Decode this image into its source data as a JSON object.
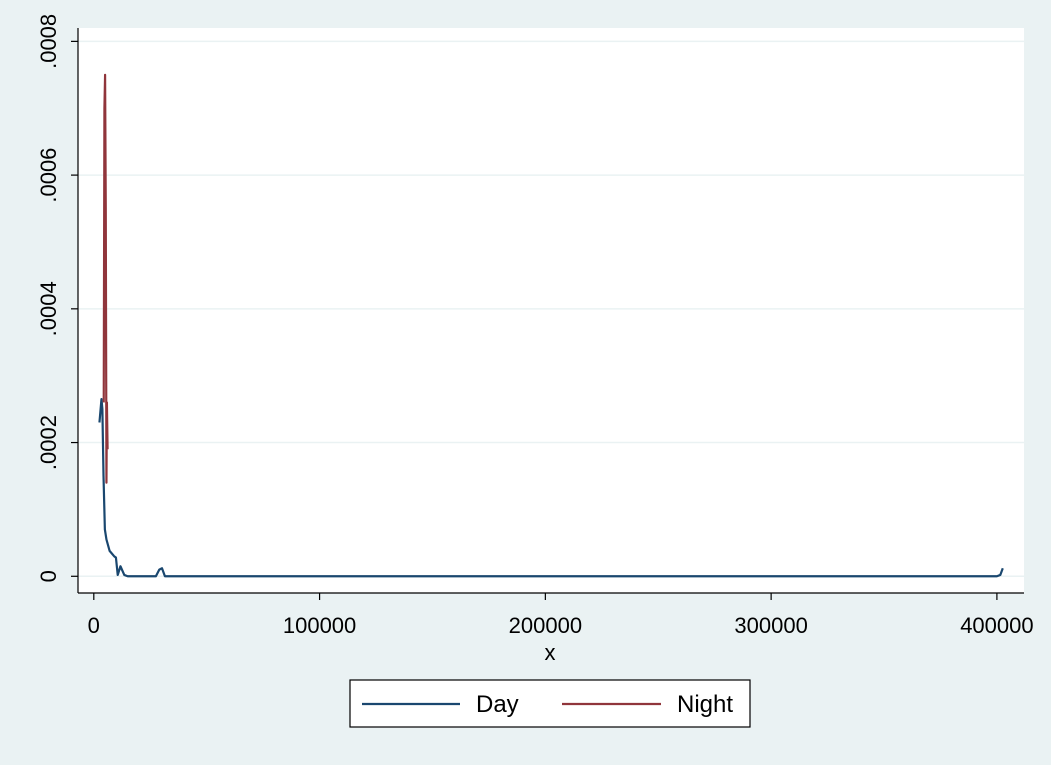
{
  "chart_data": {
    "type": "line",
    "xlabel": "x",
    "ylabel": "",
    "xlim": [
      -7000,
      412000
    ],
    "ylim": [
      -2.5e-05,
      0.00082
    ],
    "x_ticks": [
      0,
      100000,
      200000,
      300000,
      400000
    ],
    "x_tick_labels": [
      "0",
      "100000",
      "200000",
      "300000",
      "400000"
    ],
    "y_ticks": [
      0,
      0.0002,
      0.0004,
      0.0006,
      0.0008
    ],
    "y_tick_labels": [
      "0",
      ".0002",
      ".0004",
      ".0006",
      ".0008"
    ],
    "grid": true,
    "legend_position": "bottom",
    "series": [
      {
        "name": "Day",
        "color": "#1a476f",
        "points": [
          [
            2500,
            0.00023
          ],
          [
            3400,
            0.000265
          ],
          [
            3800,
            0.00025
          ],
          [
            4300,
            0.00015
          ],
          [
            4900,
            7e-05
          ],
          [
            5600,
            5.5e-05
          ],
          [
            7000,
            3.8e-05
          ],
          [
            9000,
            3e-05
          ],
          [
            9800,
            2.8e-05
          ],
          [
            10600,
            2e-06
          ],
          [
            11800,
            1.5e-05
          ],
          [
            13500,
            2e-06
          ],
          [
            15000,
            0
          ],
          [
            27500,
            0
          ],
          [
            29000,
            1e-05
          ],
          [
            30200,
            1.2e-05
          ],
          [
            31500,
            0
          ],
          [
            400000,
            0
          ],
          [
            401500,
            2e-06
          ],
          [
            402600,
            1.2e-05
          ]
        ]
      },
      {
        "name": "Night",
        "color": "#90353b",
        "points": [
          [
            4400,
            0.00026
          ],
          [
            4700,
            0.0007
          ],
          [
            5000,
            0.00075
          ],
          [
            5300,
            0.00055
          ],
          [
            5600,
            0.00014
          ],
          [
            5800,
            0.00026
          ],
          [
            6100,
            0.00019
          ]
        ]
      }
    ]
  }
}
